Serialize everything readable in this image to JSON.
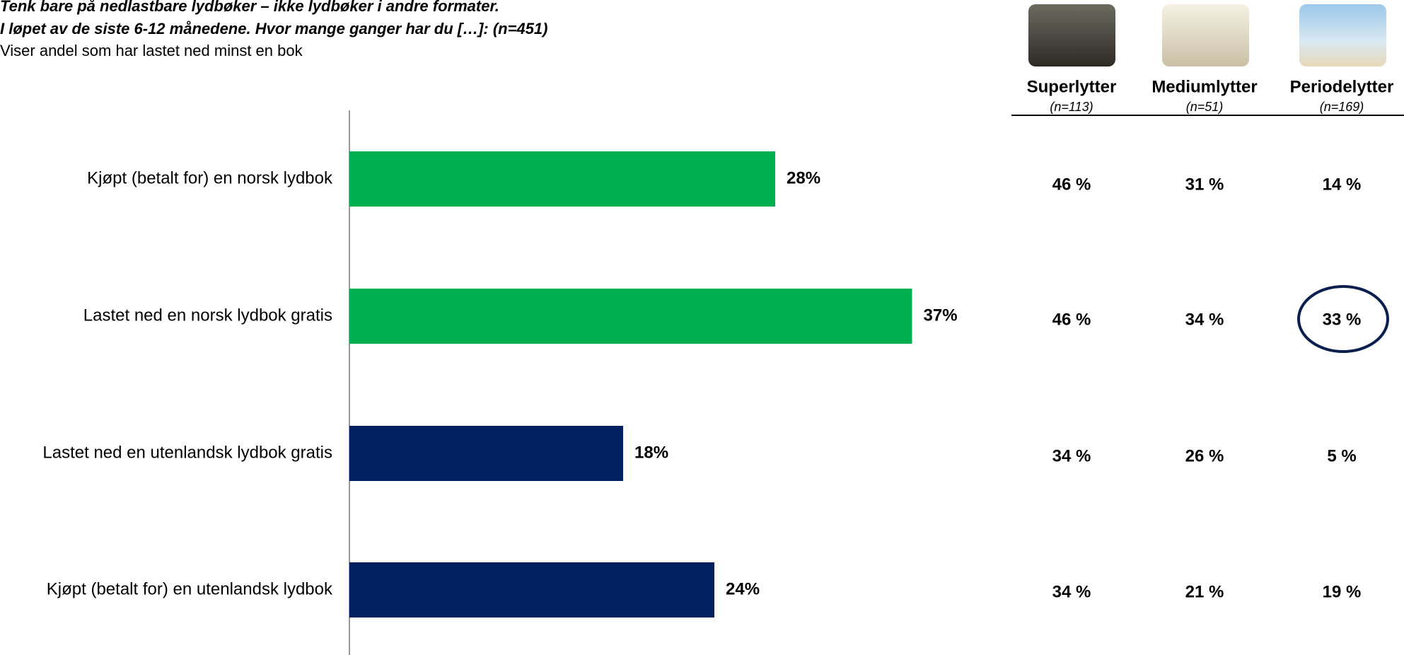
{
  "chart_data": {
    "type": "bar",
    "orientation": "horizontal",
    "title": [
      "Tenk bare på nedlastbare lydbøker – ikke lydbøker i andre formater.",
      "I løpet av de siste 6-12 månedene. Hvor mange ganger har du […]: (n=451)"
    ],
    "subtitle": "Viser andel som har lastet ned minst en bok",
    "categories": [
      "Kjøpt (betalt for) en norsk lydbok",
      "Lastet ned en norsk lydbok gratis",
      "Lastet ned en utenlandsk lydbok gratis",
      "Kjøpt (betalt for) en utenlandsk lydbok"
    ],
    "values": [
      28,
      37,
      18,
      24
    ],
    "value_labels": [
      "28%",
      "37%",
      "18%",
      "24%"
    ],
    "colors": [
      "#00b050",
      "#00b050",
      "#002060",
      "#002060"
    ],
    "xlim": [
      0,
      40
    ]
  },
  "table": {
    "columns": [
      {
        "name": "Superlytter",
        "n": "(n=113)",
        "values": [
          "46 %",
          "46 %",
          "34 %",
          "34 %"
        ]
      },
      {
        "name": "Mediumlytter",
        "n": "(n=51)",
        "values": [
          "31 %",
          "34 %",
          "26 %",
          "21 %"
        ]
      },
      {
        "name": "Periodelytter",
        "n": "(n=169)",
        "values": [
          "14 %",
          "33 %",
          "5 %",
          "19 %"
        ]
      }
    ]
  }
}
